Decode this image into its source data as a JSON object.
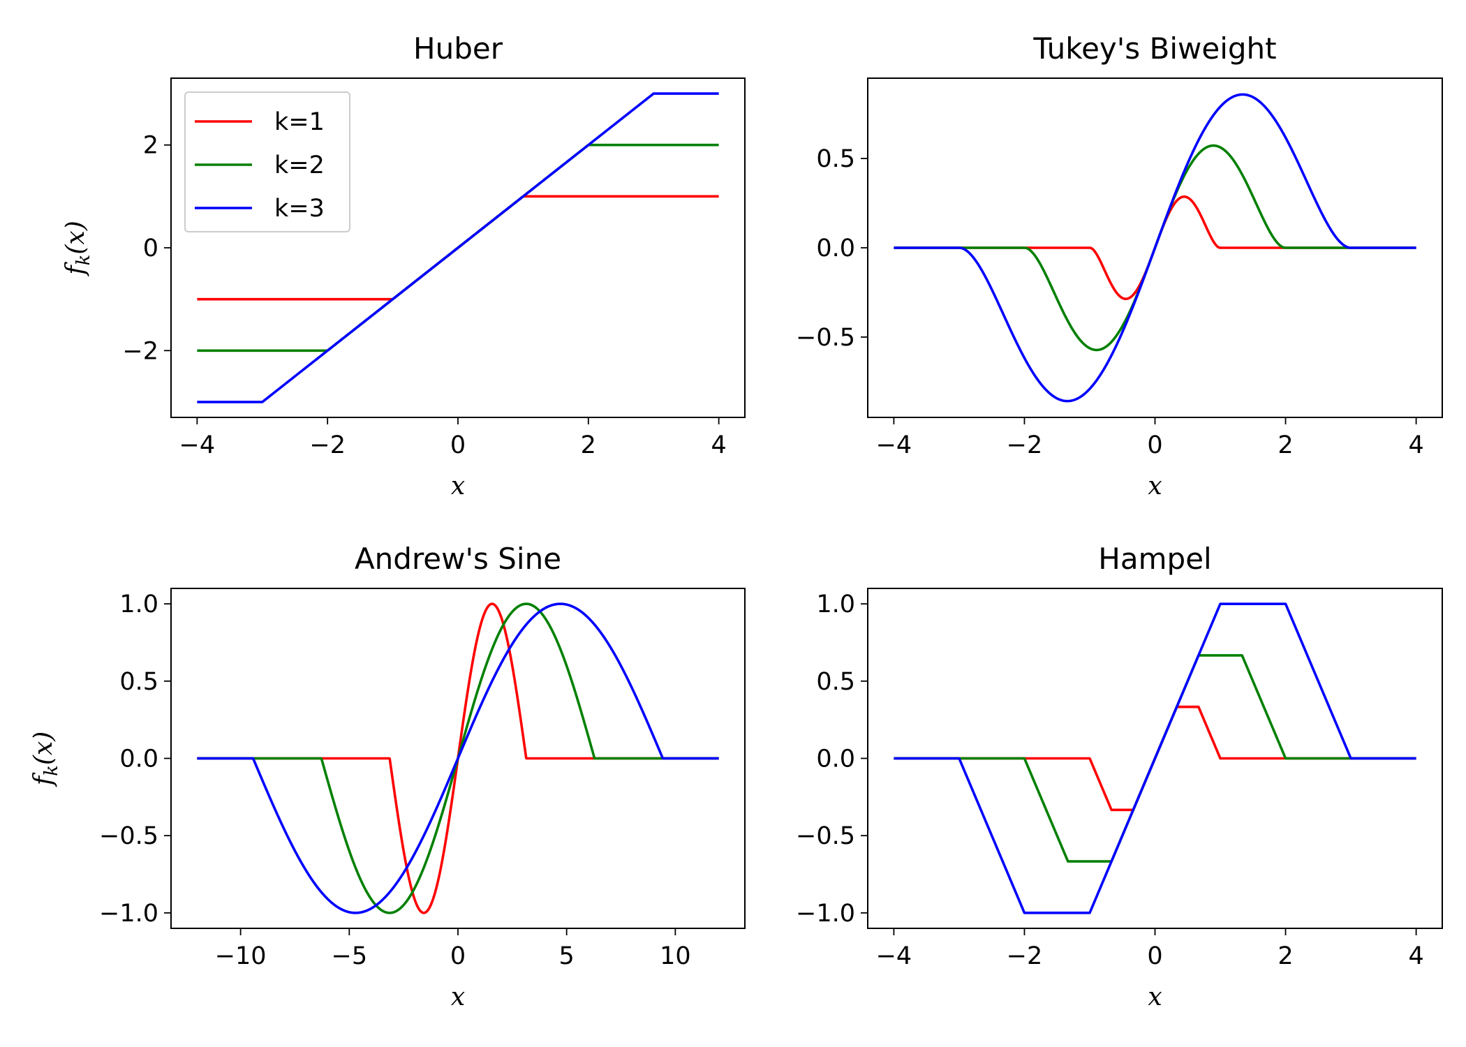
{
  "chart_data": [
    {
      "type": "line",
      "title": "Huber",
      "xlabel": "x",
      "ylabel": "f_k(x)",
      "func": "huber",
      "xlim": [
        -4.4,
        4.4
      ],
      "ylim": [
        -3.3,
        3.3
      ],
      "xticks": [
        -4,
        -2,
        0,
        2,
        4
      ],
      "xtick_labels": [
        "−4",
        "−2",
        "0",
        "2",
        "4"
      ],
      "yticks": [
        -2,
        0,
        2
      ],
      "ytick_labels": [
        "−2",
        "0",
        "2"
      ],
      "x_domain": [
        -4,
        4
      ],
      "legend": "upper left",
      "series": [
        {
          "name": "k=1",
          "k": 1,
          "color": "#ff0000"
        },
        {
          "name": "k=2",
          "k": 2,
          "color": "#008000"
        },
        {
          "name": "k=3",
          "k": 3,
          "color": "#0000ff"
        }
      ]
    },
    {
      "type": "line",
      "title": "Tukey's Biweight",
      "xlabel": "x",
      "ylabel": "",
      "func": "tukey",
      "xlim": [
        -4.4,
        4.4
      ],
      "ylim": [
        -0.95,
        0.95
      ],
      "xticks": [
        -4,
        -2,
        0,
        2,
        4
      ],
      "xtick_labels": [
        "−4",
        "−2",
        "0",
        "2",
        "4"
      ],
      "yticks": [
        -0.5,
        0,
        0.5
      ],
      "ytick_labels": [
        "−0.5",
        "0.0",
        "0.5"
      ],
      "x_domain": [
        -4,
        4
      ],
      "series": [
        {
          "k": 1,
          "color": "#ff0000"
        },
        {
          "k": 2,
          "color": "#008000"
        },
        {
          "k": 3,
          "color": "#0000ff"
        }
      ]
    },
    {
      "type": "line",
      "title": "Andrew's Sine",
      "xlabel": "x",
      "ylabel": "f_k(x)",
      "func": "andrews",
      "xlim": [
        -13.2,
        13.2
      ],
      "ylim": [
        -1.1,
        1.1
      ],
      "xticks": [
        -10,
        -5,
        0,
        5,
        10
      ],
      "xtick_labels": [
        "−10",
        "−5",
        "0",
        "5",
        "10"
      ],
      "yticks": [
        -1.0,
        -0.5,
        0,
        0.5,
        1.0
      ],
      "ytick_labels": [
        "−1.0",
        "−0.5",
        "0.0",
        "0.5",
        "1.0"
      ],
      "x_domain": [
        -12,
        12
      ],
      "series": [
        {
          "k": 1,
          "color": "#ff0000"
        },
        {
          "k": 2,
          "color": "#008000"
        },
        {
          "k": 3,
          "color": "#0000ff"
        }
      ]
    },
    {
      "type": "line",
      "title": "Hampel",
      "xlabel": "x",
      "ylabel": "",
      "func": "hampel",
      "xlim": [
        -4.4,
        4.4
      ],
      "ylim": [
        -1.1,
        1.1
      ],
      "xticks": [
        -4,
        -2,
        0,
        2,
        4
      ],
      "xtick_labels": [
        "−4",
        "−2",
        "0",
        "2",
        "4"
      ],
      "yticks": [
        -1.0,
        -0.5,
        0,
        0.5,
        1.0
      ],
      "ytick_labels": [
        "−1.0",
        "−0.5",
        "0.0",
        "0.5",
        "1.0"
      ],
      "x_domain": [
        -4,
        4
      ],
      "series": [
        {
          "k": 1,
          "color": "#ff0000"
        },
        {
          "k": 2,
          "color": "#008000"
        },
        {
          "k": 3,
          "color": "#0000ff"
        }
      ]
    }
  ]
}
